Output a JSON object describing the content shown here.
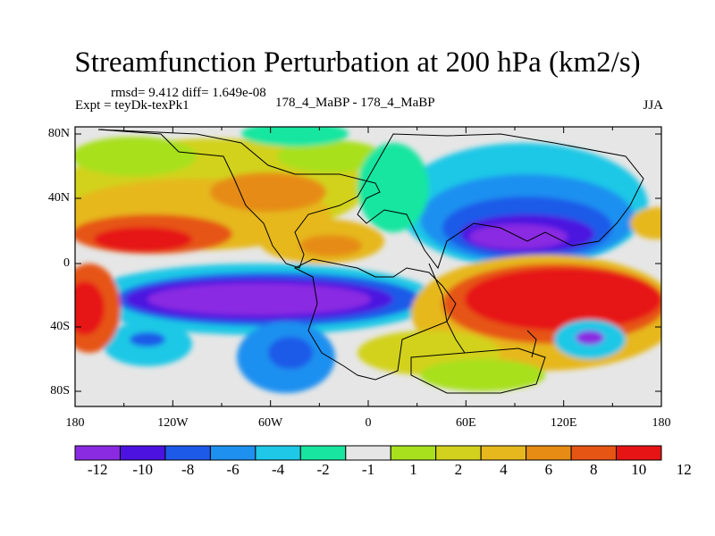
{
  "header": {
    "title": "Streamfunction Perturbation at 200 hPa (km2/s)",
    "stats": "rmsd= 9.412 diff= 1.649e-08",
    "experiment": "Expt = teyDk-texPk1",
    "center_label": "178_4_MaBP - 178_4_MaBP",
    "season": "JJA"
  },
  "axes": {
    "lat_labels": [
      "80N",
      "40N",
      "0",
      "40S",
      "80S"
    ],
    "lon_labels": [
      "180",
      "120W",
      "60W",
      "0",
      "60E",
      "120E",
      "180"
    ]
  },
  "colorbar": {
    "colors": [
      "#8a2be2",
      "#4b12e0",
      "#1e5ae8",
      "#1e90f0",
      "#1ec8e6",
      "#18e6a0",
      "#e6e6e6",
      "#a8e01e",
      "#d2d21e",
      "#e6b81e",
      "#e68c14",
      "#e65514",
      "#e61414"
    ],
    "labels": [
      "-12",
      "-10",
      "-8",
      "-6",
      "-4",
      "-2",
      "-1",
      "1",
      "2",
      "4",
      "6",
      "8",
      "10",
      "12"
    ]
  },
  "field_colors": {
    "background": "#e6e6e6",
    "neg_strong": "#8a2be2",
    "neg_mid": "#1e5ae8",
    "neg_light": "#1ec8e6",
    "neg_pale": "#18e6a0",
    "pos_pale": "#a8e01e",
    "pos_light": "#e6b81e",
    "pos_mid": "#e65514",
    "pos_strong": "#e61414"
  }
}
